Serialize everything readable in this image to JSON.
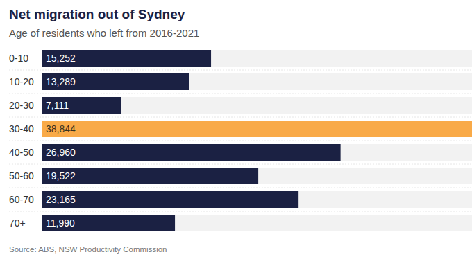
{
  "chart_data": {
    "type": "bar",
    "title": "Net migration out of Sydney",
    "subtitle": "Age of residents who left from 2016-2021",
    "source": "Source: ABS, NSW Productivity Commission",
    "orientation": "horizontal",
    "categories": [
      "0-10",
      "10-20",
      "20-30",
      "30-40",
      "40-50",
      "50-60",
      "60-70",
      "70+"
    ],
    "values": [
      15252,
      13289,
      7111,
      38844,
      26960,
      19522,
      23165,
      11990
    ],
    "value_labels": [
      "15,252",
      "13,289",
      "7,111",
      "38,844",
      "26,960",
      "19,522",
      "23,165",
      "11,990"
    ],
    "colors": [
      "#1b2143",
      "#1b2143",
      "#1b2143",
      "#f9aa48",
      "#1b2143",
      "#1b2143",
      "#1b2143",
      "#1b2143"
    ],
    "xlim": [
      0,
      38844
    ],
    "data_labels": true,
    "tick_labels": "y",
    "grid": false
  }
}
